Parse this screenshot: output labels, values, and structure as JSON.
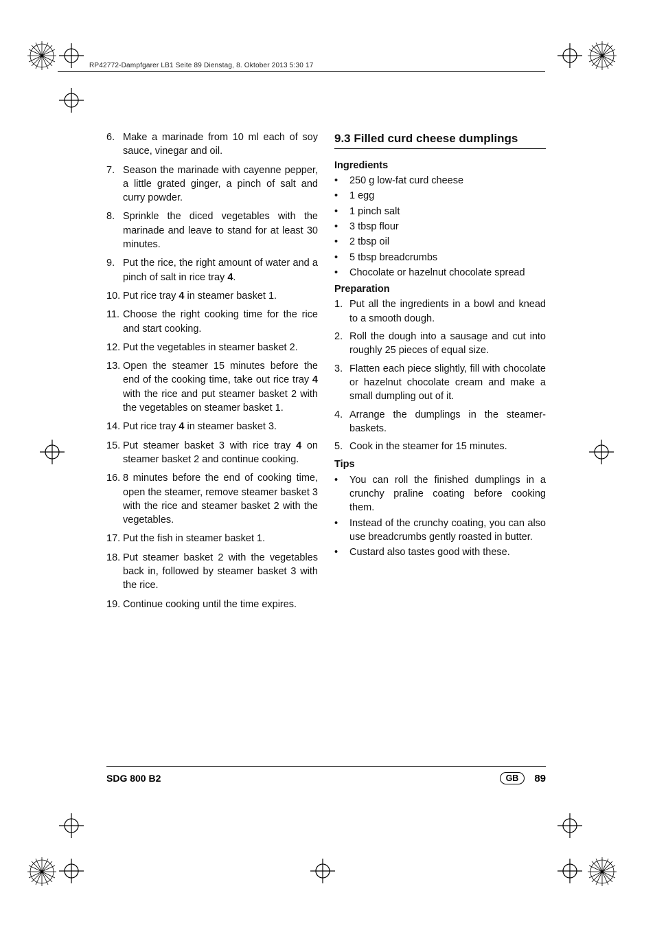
{
  "header": {
    "text": "RP42772-Dampfgarer LB1  Seite 89  Dienstag, 8. Oktober 2013  5:30 17"
  },
  "left_steps": [
    {
      "n": "6.",
      "t": "Make a marinade from 10 ml each of soy sauce, vinegar and oil."
    },
    {
      "n": "7.",
      "t": "Season the marinade with cayenne pepper, a little grated ginger, a pinch of salt and curry powder."
    },
    {
      "n": "8.",
      "t": "Sprinkle the diced vegetables with the marinade and leave to stand for at least 30 minutes."
    },
    {
      "n": "9.",
      "t": "Put the rice, the right amount of water and a pinch of salt in rice tray ",
      "bold": "4",
      "after": "."
    },
    {
      "n": "10.",
      "t": "Put rice tray ",
      "bold": "4",
      "after": " in steamer basket 1."
    },
    {
      "n": "11.",
      "t": "Choose the right cooking time for the rice and start cooking."
    },
    {
      "n": "12.",
      "t": "Put the vegetables in steamer basket 2."
    },
    {
      "n": "13.",
      "t": "Open the steamer 15 minutes before the end of the cooking time, take out rice tray ",
      "bold": "4",
      "after": " with the rice and put steamer basket 2 with the vegetables on steamer basket 1."
    },
    {
      "n": "14.",
      "t": "Put rice tray ",
      "bold": "4",
      "after": " in steamer basket 3."
    },
    {
      "n": "15.",
      "t": "Put steamer basket 3 with rice tray ",
      "bold": "4",
      "after": " on steamer basket 2 and continue cooking."
    },
    {
      "n": "16.",
      "t": "8 minutes before the end of cooking time, open the steamer, remove steamer basket 3 with the rice and steamer basket 2 with the vegetables."
    },
    {
      "n": "17.",
      "t": "Put the fish in steamer basket 1."
    },
    {
      "n": "18.",
      "t": "Put steamer basket 2 with the vegetables back in, followed by steamer basket 3 with the rice."
    },
    {
      "n": "19.",
      "t": "Continue cooking until the time expires."
    }
  ],
  "right": {
    "title": "9.3 Filled curd cheese dumplings",
    "ingredients_head": "Ingredients",
    "ingredients": [
      "250 g low-fat curd cheese",
      "1 egg",
      "1 pinch salt",
      "3 tbsp flour",
      "2 tbsp oil",
      "5 tbsp breadcrumbs",
      "Chocolate or hazelnut chocolate spread"
    ],
    "prep_head": "Preparation",
    "prep": [
      {
        "n": "1.",
        "t": "Put all the ingredients in a bowl and knead to a smooth dough."
      },
      {
        "n": "2.",
        "t": "Roll the dough into a sausage and cut into roughly 25 pieces of equal size."
      },
      {
        "n": "3.",
        "t": "Flatten each piece slightly, fill with chocolate or hazelnut chocolate cream and make a small dumpling out of it."
      },
      {
        "n": "4.",
        "t": "Arrange the dumplings in the steamer-baskets."
      },
      {
        "n": "5.",
        "t": "Cook in the steamer for 15 minutes."
      }
    ],
    "tips_head": "Tips",
    "tips": [
      "You can roll the finished dumplings in a crunchy praline coating before cooking them.",
      "Instead of the crunchy coating, you can also use breadcrumbs gently roasted in butter.",
      "Custard also tastes good with these."
    ]
  },
  "footer": {
    "model": "SDG 800 B2",
    "lang": "GB",
    "page": "89"
  },
  "marks": {
    "stroke": "#000000"
  }
}
